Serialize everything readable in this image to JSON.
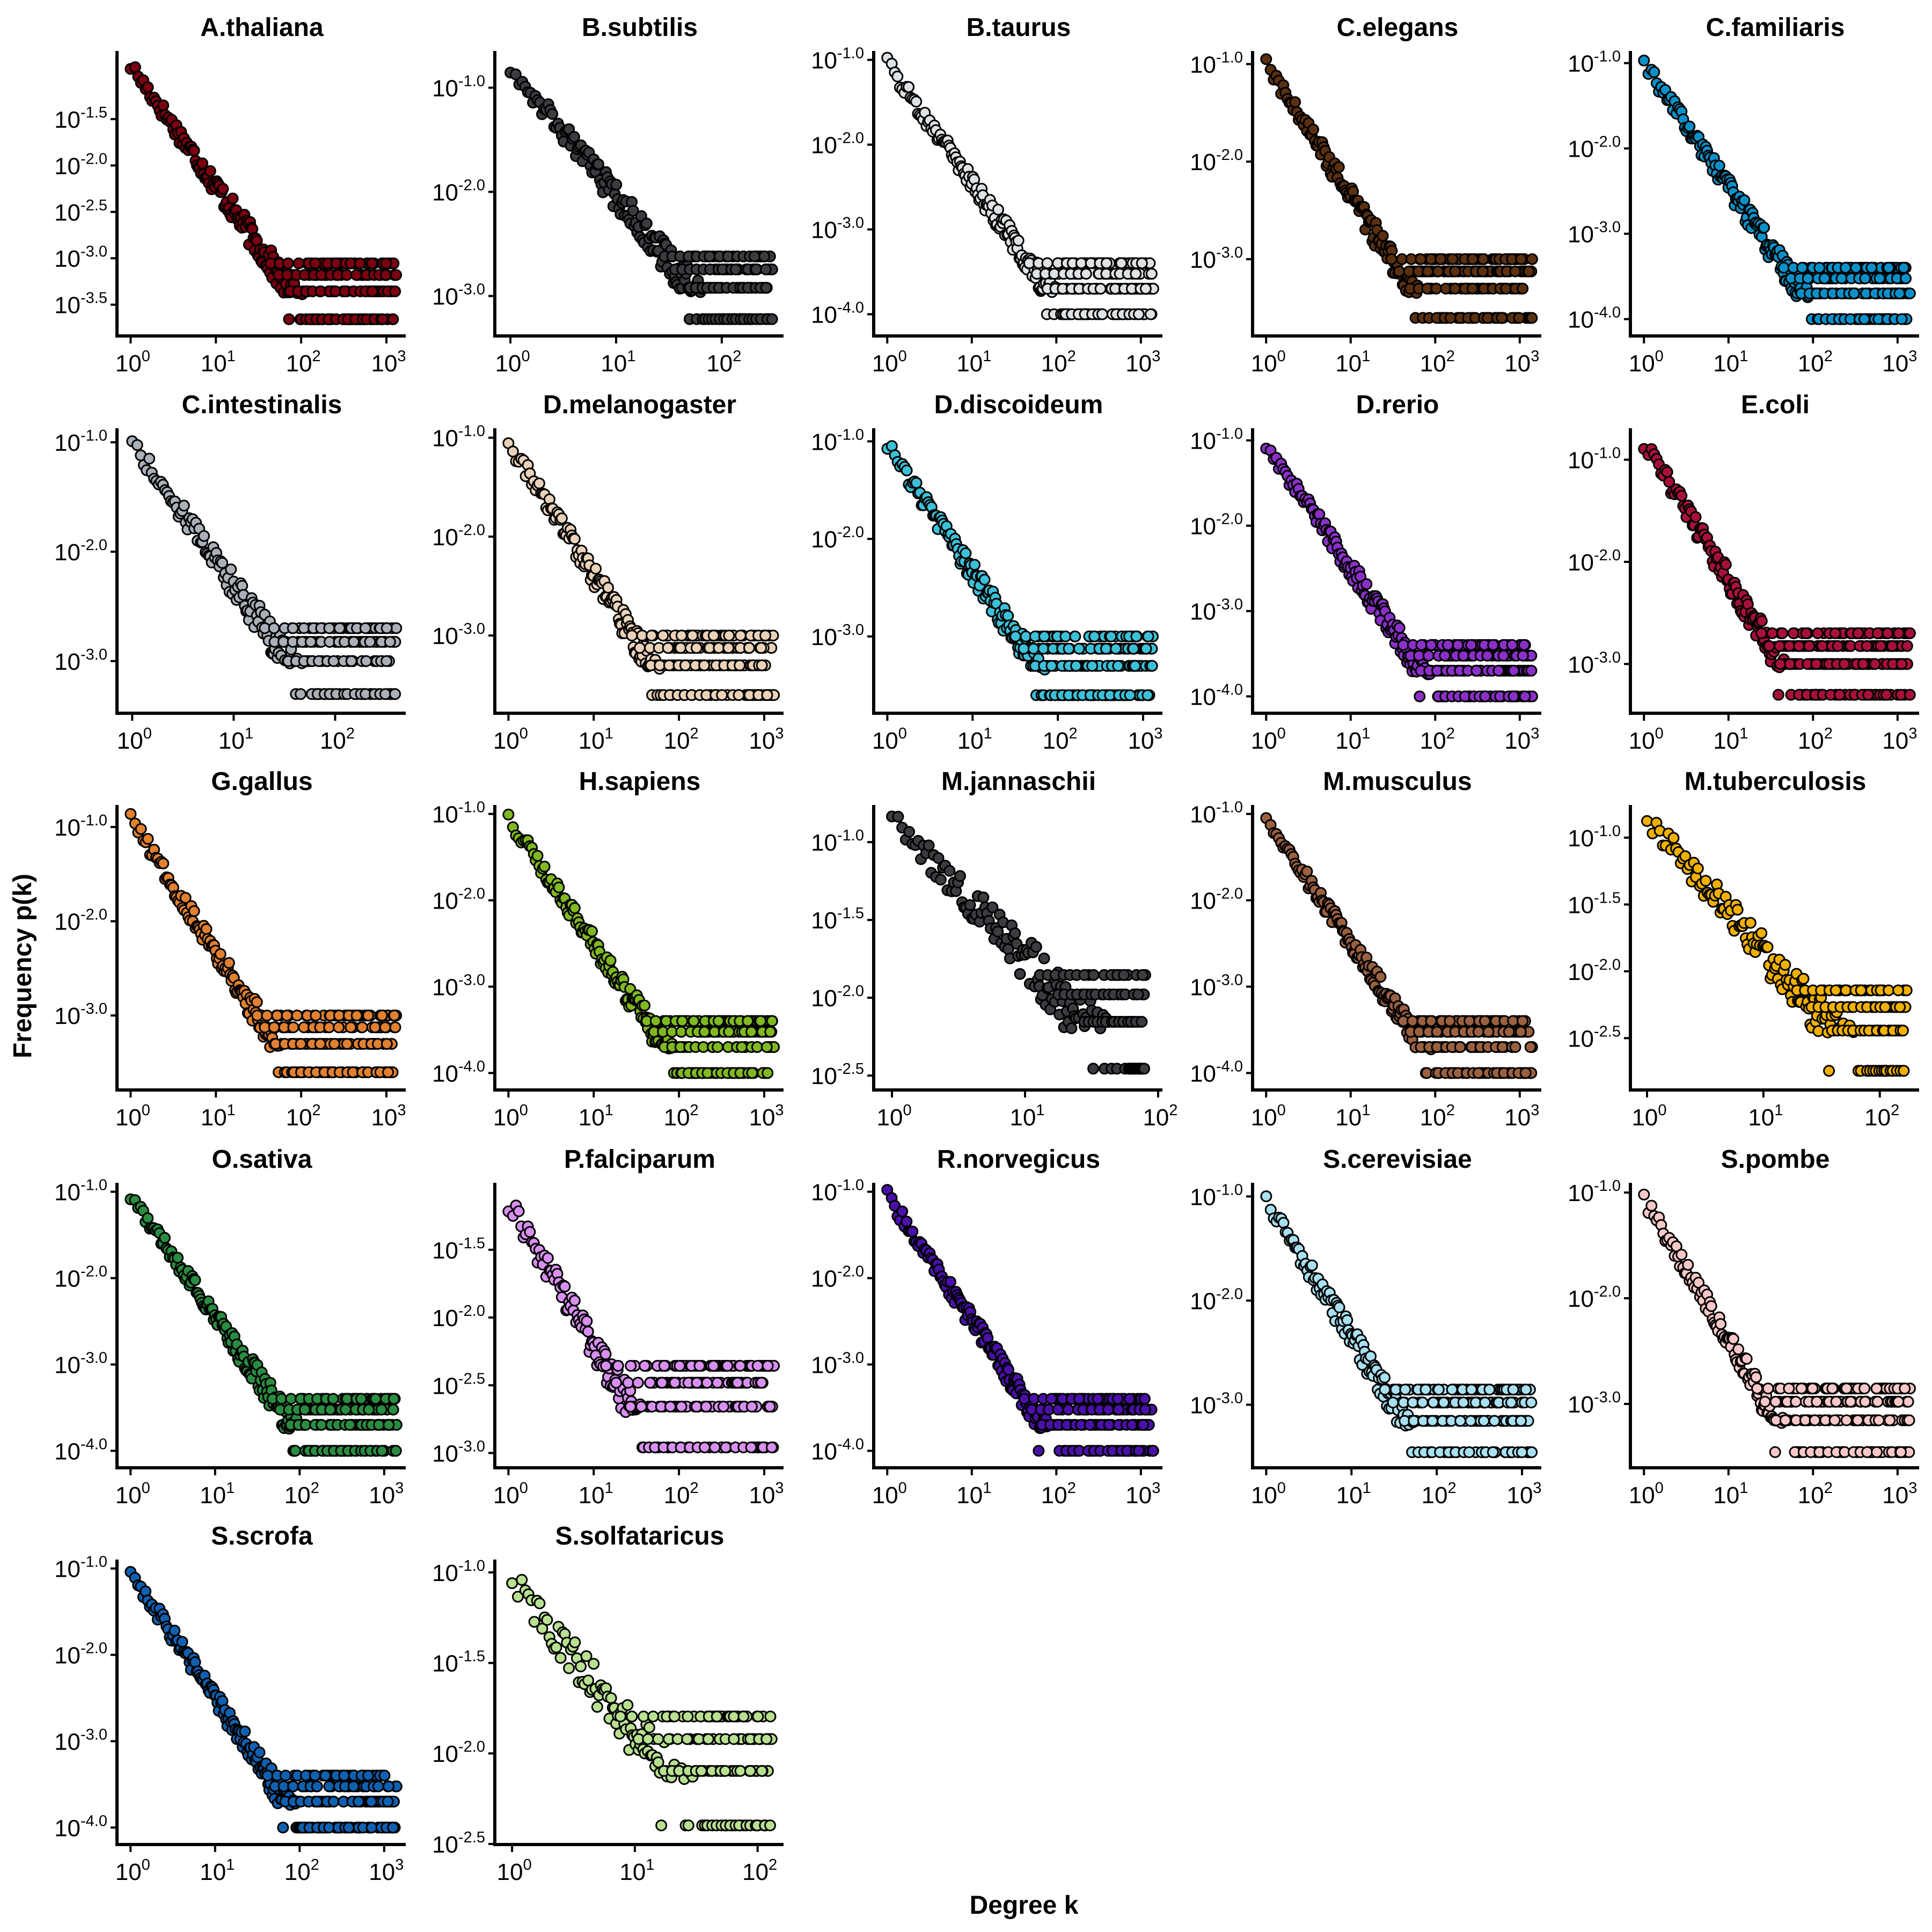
{
  "figure": {
    "xlabel": "Degree k",
    "ylabel": "Frequency p(k)"
  },
  "chart_data": [
    {
      "type": "scatter",
      "title": "A.thaliana",
      "color": "#7b0010",
      "x_scale": "log10",
      "y_scale": "log10",
      "xlim": [
        0.8,
        1500
      ],
      "ylim": [
        0.00018,
        0.15
      ],
      "xticks": [
        1,
        10,
        100,
        1000
      ],
      "xtick_labels": [
        "10^0",
        "10^1",
        "10^2",
        "10^3"
      ],
      "yticks": [
        0.0316,
        0.01,
        0.00316,
        0.001,
        0.000316
      ],
      "ytick_labels": [
        "10^-1.5",
        "10^-2.0",
        "10^-2.5",
        "10^-3.0",
        "10^-3.5"
      ],
      "kmax": 1300,
      "pmax": 0.12,
      "slope": 1.3,
      "floor": 0.00022
    },
    {
      "type": "scatter",
      "title": "B.subtilis",
      "color": "#3a3c40",
      "x_scale": "log10",
      "y_scale": "log10",
      "xlim": [
        0.8,
        350
      ],
      "ylim": [
        0.0005,
        0.2
      ],
      "xticks": [
        1,
        10,
        100
      ],
      "xtick_labels": [
        "10^0",
        "10^1",
        "10^2"
      ],
      "yticks": [
        0.1,
        0.01,
        0.001
      ],
      "ytick_labels": [
        "10^-1.0",
        "10^-2.0",
        "10^-3.0"
      ],
      "kmax": 300,
      "pmax": 0.16,
      "slope": 1.25,
      "floor": 0.0006
    },
    {
      "type": "scatter",
      "title": "B.taurus",
      "color": "#dfe2e5",
      "x_scale": "log10",
      "y_scale": "log10",
      "xlim": [
        0.8,
        1600
      ],
      "ylim": [
        7e-05,
        0.11
      ],
      "xticks": [
        1,
        10,
        100,
        1000
      ],
      "xtick_labels": [
        "10^0",
        "10^1",
        "10^2",
        "10^3"
      ],
      "yticks": [
        0.1,
        0.01,
        0.001,
        0.0001
      ],
      "ytick_labels": [
        "10^-1.0",
        "10^-2.0",
        "10^-3.0",
        "10^-4.0"
      ],
      "kmax": 1400,
      "pmax": 0.09,
      "slope": 1.4,
      "floor": 0.0001
    },
    {
      "type": "scatter",
      "title": "C.elegans",
      "color": "#5a3010",
      "x_scale": "log10",
      "y_scale": "log10",
      "xlim": [
        0.8,
        1600
      ],
      "ylim": [
        0.0002,
        0.12
      ],
      "xticks": [
        1,
        10,
        100,
        1000
      ],
      "xtick_labels": [
        "10^0",
        "10^1",
        "10^2",
        "10^3"
      ],
      "yticks": [
        0.1,
        0.01,
        0.001
      ],
      "ytick_labels": [
        "10^-1.0",
        "10^-2.0",
        "10^-3.0"
      ],
      "kmax": 1400,
      "pmax": 0.1,
      "slope": 1.35,
      "floor": 0.00025
    },
    {
      "type": "scatter",
      "title": "C.familiaris",
      "color": "#0a90c8",
      "x_scale": "log10",
      "y_scale": "log10",
      "xlim": [
        0.8,
        1600
      ],
      "ylim": [
        8e-05,
        0.12
      ],
      "xticks": [
        1,
        10,
        100,
        1000
      ],
      "xtick_labels": [
        "10^0",
        "10^1",
        "10^2",
        "10^3"
      ],
      "yticks": [
        0.1,
        0.01,
        0.001,
        0.0001
      ],
      "ytick_labels": [
        "10^-1.0",
        "10^-2.0",
        "10^-3.0",
        "10^-4.0"
      ],
      "kmax": 1400,
      "pmax": 0.1,
      "slope": 1.45,
      "floor": 0.0001
    },
    {
      "type": "scatter",
      "title": "C.intestinalis",
      "color": "#aab0b8",
      "x_scale": "log10",
      "y_scale": "log10",
      "xlim": [
        0.8,
        450
      ],
      "ylim": [
        0.0004,
        0.12
      ],
      "xticks": [
        1,
        10,
        100
      ],
      "xtick_labels": [
        "10^0",
        "10^1",
        "10^2"
      ],
      "yticks": [
        0.1,
        0.01,
        0.001
      ],
      "ytick_labels": [
        "10^-1.0",
        "10^-2.0",
        "10^-3.0"
      ],
      "kmax": 400,
      "pmax": 0.1,
      "slope": 1.3,
      "floor": 0.0005
    },
    {
      "type": "scatter",
      "title": "D.melanogaster",
      "color": "#ead2b8",
      "x_scale": "log10",
      "y_scale": "log10",
      "xlim": [
        0.8,
        1500
      ],
      "ylim": [
        0.0002,
        0.11
      ],
      "xticks": [
        1,
        10,
        100,
        1000
      ],
      "xtick_labels": [
        "10^0",
        "10^1",
        "10^2",
        "10^3"
      ],
      "yticks": [
        0.1,
        0.01,
        0.001
      ],
      "ytick_labels": [
        "10^-1.0",
        "10^-2.0",
        "10^-3.0"
      ],
      "kmax": 1300,
      "pmax": 0.09,
      "slope": 1.35,
      "floor": 0.00025
    },
    {
      "type": "scatter",
      "title": "D.discoideum",
      "color": "#3cc0d8",
      "x_scale": "log10",
      "y_scale": "log10",
      "xlim": [
        0.8,
        1500
      ],
      "ylim": [
        0.0002,
        0.12
      ],
      "xticks": [
        1,
        10,
        100,
        1000
      ],
      "xtick_labels": [
        "10^0",
        "10^1",
        "10^2",
        "10^3"
      ],
      "yticks": [
        0.1,
        0.01,
        0.001
      ],
      "ytick_labels": [
        "10^-1.0",
        "10^-2.0",
        "10^-3.0"
      ],
      "kmax": 1300,
      "pmax": 0.09,
      "slope": 1.3,
      "floor": 0.00025
    },
    {
      "type": "scatter",
      "title": "D.rerio",
      "color": "#8a30c8",
      "x_scale": "log10",
      "y_scale": "log10",
      "xlim": [
        0.8,
        1600
      ],
      "ylim": [
        8e-05,
        0.12
      ],
      "xticks": [
        1,
        10,
        100,
        1000
      ],
      "xtick_labels": [
        "10^0",
        "10^1",
        "10^2",
        "10^3"
      ],
      "yticks": [
        0.1,
        0.01,
        0.001,
        0.0001
      ],
      "ytick_labels": [
        "10^-1.0",
        "10^-2.0",
        "10^-3.0",
        "10^-4.0"
      ],
      "kmax": 1400,
      "pmax": 0.09,
      "slope": 1.45,
      "floor": 0.0001
    },
    {
      "type": "scatter",
      "title": "E.coli",
      "color": "#a8103a",
      "x_scale": "log10",
      "y_scale": "log10",
      "xlim": [
        0.8,
        1600
      ],
      "ylim": [
        0.0004,
        0.18
      ],
      "xticks": [
        1,
        10,
        100,
        1000
      ],
      "xtick_labels": [
        "10^0",
        "10^1",
        "10^2",
        "10^3"
      ],
      "yticks": [
        0.1,
        0.01,
        0.001
      ],
      "ytick_labels": [
        "10^-1.0",
        "10^-2.0",
        "10^-3.0"
      ],
      "kmax": 1400,
      "pmax": 0.15,
      "slope": 1.35,
      "floor": 0.0005
    },
    {
      "type": "scatter",
      "title": "G.gallus",
      "color": "#e08030",
      "x_scale": "log10",
      "y_scale": "log10",
      "xlim": [
        0.8,
        1500
      ],
      "ylim": [
        0.0002,
        0.15
      ],
      "xticks": [
        1,
        10,
        100,
        1000
      ],
      "xtick_labels": [
        "10^0",
        "10^1",
        "10^2",
        "10^3"
      ],
      "yticks": [
        0.1,
        0.01,
        0.001
      ],
      "ytick_labels": [
        "10^-1.0",
        "10^-2.0",
        "10^-3.0"
      ],
      "kmax": 1300,
      "pmax": 0.12,
      "slope": 1.4,
      "floor": 0.00025
    },
    {
      "type": "scatter",
      "title": "H.sapiens",
      "color": "#80b820",
      "x_scale": "log10",
      "y_scale": "log10",
      "xlim": [
        0.8,
        1500
      ],
      "ylim": [
        8e-05,
        0.11
      ],
      "xticks": [
        1,
        10,
        100,
        1000
      ],
      "xtick_labels": [
        "10^0",
        "10^1",
        "10^2",
        "10^3"
      ],
      "yticks": [
        0.1,
        0.01,
        0.001,
        0.0001
      ],
      "ytick_labels": [
        "10^-1.0",
        "10^-2.0",
        "10^-3.0",
        "10^-4.0"
      ],
      "kmax": 1300,
      "pmax": 0.09,
      "slope": 1.45,
      "floor": 0.0001
    },
    {
      "type": "scatter",
      "title": "M.jannaschii",
      "color": "#3a3c40",
      "x_scale": "log10",
      "y_scale": "log10",
      "xlim": [
        0.8,
        100
      ],
      "ylim": [
        0.0029,
        0.16
      ],
      "xticks": [
        1,
        10,
        100
      ],
      "xtick_labels": [
        "10^0",
        "10^1",
        "10^2"
      ],
      "yticks": [
        0.1,
        0.0316,
        0.01,
        0.00316
      ],
      "ytick_labels": [
        "10^-1.0",
        "10^-1.5",
        "10^-2.0",
        "10^-2.5"
      ],
      "kmax": 80,
      "pmax": 0.14,
      "slope": 0.9,
      "floor": 0.0035
    },
    {
      "type": "scatter",
      "title": "M.musculus",
      "color": "#9a6040",
      "x_scale": "log10",
      "y_scale": "log10",
      "xlim": [
        0.8,
        1600
      ],
      "ylim": [
        8e-05,
        0.11
      ],
      "xticks": [
        1,
        10,
        100,
        1000
      ],
      "xtick_labels": [
        "10^0",
        "10^1",
        "10^2",
        "10^3"
      ],
      "yticks": [
        0.1,
        0.01,
        0.001,
        0.0001
      ],
      "ytick_labels": [
        "10^-1.0",
        "10^-2.0",
        "10^-3.0",
        "10^-4.0"
      ],
      "kmax": 1400,
      "pmax": 0.09,
      "slope": 1.45,
      "floor": 0.0001
    },
    {
      "type": "scatter",
      "title": "M.tuberculosis",
      "color": "#f0b000",
      "x_scale": "log10",
      "y_scale": "log10",
      "xlim": [
        0.8,
        200
      ],
      "ylim": [
        0.0015,
        0.16
      ],
      "xticks": [
        1,
        10,
        100
      ],
      "xtick_labels": [
        "10^0",
        "10^1",
        "10^2"
      ],
      "yticks": [
        0.1,
        0.0316,
        0.01,
        0.00316
      ],
      "ytick_labels": [
        "10^-1.0",
        "10^-1.5",
        "10^-2.0",
        "10^-2.5"
      ],
      "kmax": 170,
      "pmax": 0.14,
      "slope": 1.0,
      "floor": 0.0018
    },
    {
      "type": "scatter",
      "title": "O.sativa",
      "color": "#2a8c40",
      "x_scale": "log10",
      "y_scale": "log10",
      "xlim": [
        0.8,
        1600
      ],
      "ylim": [
        8e-05,
        0.11
      ],
      "xticks": [
        1,
        10,
        100,
        1000
      ],
      "xtick_labels": [
        "10^0",
        "10^1",
        "10^2",
        "10^3"
      ],
      "yticks": [
        0.1,
        0.01,
        0.001,
        0.0001
      ],
      "ytick_labels": [
        "10^-1.0",
        "10^-2.0",
        "10^-3.0",
        "10^-4.0"
      ],
      "kmax": 1400,
      "pmax": 0.09,
      "slope": 1.4,
      "floor": 0.0001
    },
    {
      "type": "scatter",
      "title": "P.falciparum",
      "color": "#d890f0",
      "x_scale": "log10",
      "y_scale": "log10",
      "xlim": [
        0.8,
        1500
      ],
      "ylim": [
        0.0009,
        0.09
      ],
      "xticks": [
        1,
        10,
        100,
        1000
      ],
      "xtick_labels": [
        "10^0",
        "10^1",
        "10^2",
        "10^3"
      ],
      "yticks": [
        0.0316,
        0.01,
        0.00316,
        0.001
      ],
      "ytick_labels": [
        "10^-1.5",
        "10^-2.0",
        "10^-2.5",
        "10^-3.0"
      ],
      "kmax": 1300,
      "pmax": 0.07,
      "slope": 1.05,
      "floor": 0.0011
    },
    {
      "type": "scatter",
      "title": "R.norvegicus",
      "color": "#4a10a8",
      "x_scale": "log10",
      "y_scale": "log10",
      "xlim": [
        0.8,
        1600
      ],
      "ylim": [
        8e-05,
        0.11
      ],
      "xticks": [
        1,
        10,
        100,
        1000
      ],
      "xtick_labels": [
        "10^0",
        "10^1",
        "10^2",
        "10^3"
      ],
      "yticks": [
        0.1,
        0.01,
        0.001,
        0.0001
      ],
      "ytick_labels": [
        "10^-1.0",
        "10^-2.0",
        "10^-3.0",
        "10^-4.0"
      ],
      "kmax": 1400,
      "pmax": 0.09,
      "slope": 1.45,
      "floor": 0.0001
    },
    {
      "type": "scatter",
      "title": "S.cerevisiae",
      "color": "#a8e0f0",
      "x_scale": "log10",
      "y_scale": "log10",
      "xlim": [
        0.8,
        1500
      ],
      "ylim": [
        0.0003,
        0.12
      ],
      "xticks": [
        1,
        10,
        100,
        1000
      ],
      "xtick_labels": [
        "10^0",
        "10^1",
        "10^2",
        "10^3"
      ],
      "yticks": [
        0.1,
        0.01,
        0.001
      ],
      "ytick_labels": [
        "10^-1.0",
        "10^-2.0",
        "10^-3.0"
      ],
      "kmax": 1300,
      "pmax": 0.09,
      "slope": 1.3,
      "floor": 0.00035
    },
    {
      "type": "scatter",
      "title": "S.pombe",
      "color": "#f8c8c8",
      "x_scale": "log10",
      "y_scale": "log10",
      "xlim": [
        0.8,
        1600
      ],
      "ylim": [
        0.0003,
        0.11
      ],
      "xticks": [
        1,
        10,
        100,
        1000
      ],
      "xtick_labels": [
        "10^0",
        "10^1",
        "10^2",
        "10^3"
      ],
      "yticks": [
        0.1,
        0.01,
        0.001
      ],
      "ytick_labels": [
        "10^-1.0",
        "10^-2.0",
        "10^-3.0"
      ],
      "kmax": 1400,
      "pmax": 0.09,
      "slope": 1.35,
      "floor": 0.00035
    },
    {
      "type": "scatter",
      "title": "S.scrofa",
      "color": "#1060b0",
      "x_scale": "log10",
      "y_scale": "log10",
      "xlim": [
        0.8,
        1600
      ],
      "ylim": [
        8e-05,
        0.11
      ],
      "xticks": [
        1,
        10,
        100,
        1000
      ],
      "xtick_labels": [
        "10^0",
        "10^1",
        "10^2",
        "10^3"
      ],
      "yticks": [
        0.1,
        0.01,
        0.001,
        0.0001
      ],
      "ytick_labels": [
        "10^-1.0",
        "10^-2.0",
        "10^-3.0",
        "10^-4.0"
      ],
      "kmax": 1400,
      "pmax": 0.09,
      "slope": 1.45,
      "floor": 0.0001
    },
    {
      "type": "scatter",
      "title": "S.solfataricus",
      "color": "#b8e090",
      "x_scale": "log10",
      "y_scale": "log10",
      "xlim": [
        0.8,
        150
      ],
      "ylim": [
        0.0035,
        0.11
      ],
      "xticks": [
        1,
        10,
        100
      ],
      "xtick_labels": [
        "10^0",
        "10^1",
        "10^2"
      ],
      "yticks": [
        0.1,
        0.0316,
        0.01,
        0.00316
      ],
      "ytick_labels": [
        "10^-1.0",
        "10^-1.5",
        "10^-2.0",
        "10^-2.5"
      ],
      "kmax": 130,
      "pmax": 0.09,
      "slope": 0.85,
      "floor": 0.004
    }
  ]
}
